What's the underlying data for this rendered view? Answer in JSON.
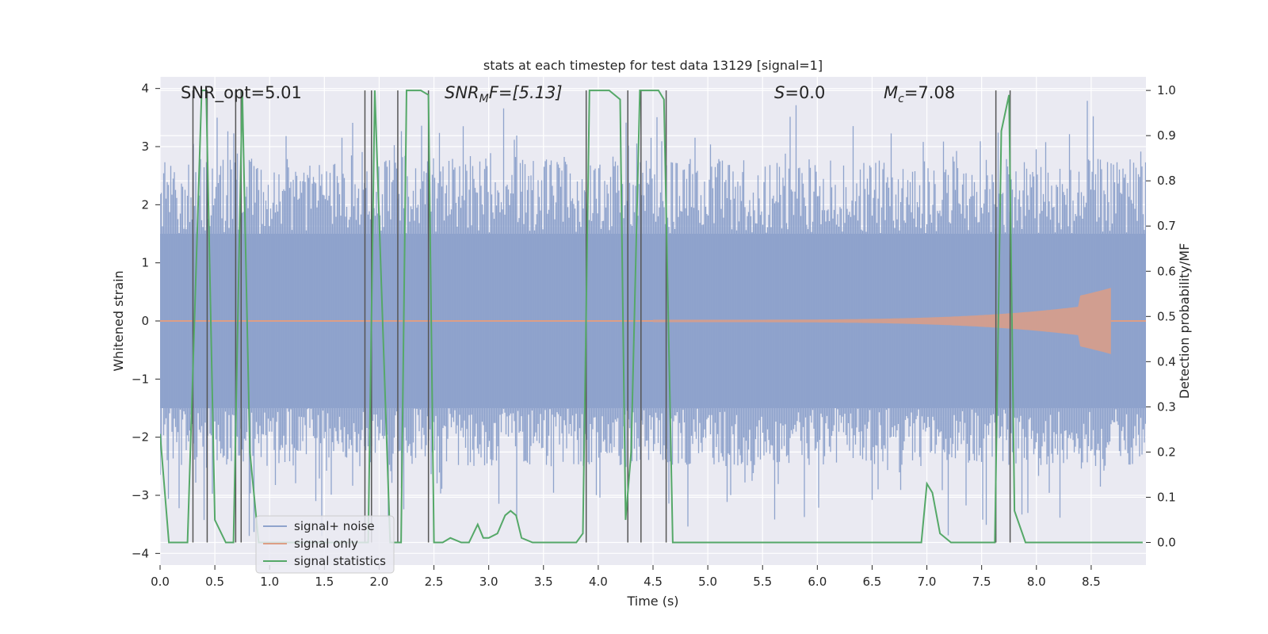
{
  "chart_data": {
    "type": "line",
    "title": "stats at each timestep for test data 13129 [signal=1]",
    "xlabel": "Time (s)",
    "ylabel_left": "Whitened strain",
    "ylabel_right": "Detection probability/MF",
    "xlim": [
      0.0,
      9.0
    ],
    "ylim_left": [
      -4.2,
      4.2
    ],
    "ylim_right": [
      -0.05,
      1.03
    ],
    "xticks": [
      "0.0",
      "0.5",
      "1.0",
      "1.5",
      "2.0",
      "2.5",
      "3.0",
      "3.5",
      "4.0",
      "4.5",
      "5.0",
      "5.5",
      "6.0",
      "6.5",
      "7.0",
      "7.5",
      "8.0",
      "8.5"
    ],
    "yticks_left": [
      "4",
      "3",
      "2",
      "1",
      "0",
      "−1",
      "−2",
      "−3",
      "−4"
    ],
    "yticks_right": [
      "1.0",
      "0.9",
      "0.8",
      "0.7",
      "0.6",
      "0.5",
      "0.4",
      "0.3",
      "0.2",
      "0.1",
      "0.0"
    ],
    "grid": true,
    "legend_position": "lower-left",
    "annotations": {
      "snr_opt": "SNR_opt=5.01",
      "snr_mf_base": "SNR",
      "snr_mf_sub": "M",
      "snr_mf_rest": "F=[5.13]",
      "s_var": "S",
      "s_rest": "=0.0",
      "mc_var": "M",
      "mc_sub": "c",
      "mc_rest": "=7.08"
    },
    "series": [
      {
        "name": "signal+ noise",
        "color": "#8fa3cc",
        "axis": "left",
        "description_values": {
          "envelope_typical": 1.5,
          "peak_max": 4.1,
          "peak_min": -3.7
        }
      },
      {
        "name": "signal only",
        "color": "#dd9e85",
        "axis": "left",
        "chirp": {
          "start": 4.5,
          "end": 8.68,
          "max_amplitude": 0.55
        }
      },
      {
        "name": "signal statistics",
        "color": "#55a868",
        "axis": "right",
        "x": [
          0.0,
          0.08,
          0.25,
          0.38,
          0.42,
          0.5,
          0.6,
          0.67,
          0.75,
          0.82,
          0.9,
          1.9,
          1.96,
          2.1,
          2.2,
          2.25,
          2.38,
          2.45,
          2.5,
          2.58,
          2.65,
          2.75,
          2.82,
          2.9,
          2.95,
          3.0,
          3.08,
          3.15,
          3.2,
          3.25,
          3.3,
          3.4,
          3.5,
          3.6,
          3.7,
          3.8,
          3.86,
          3.92,
          4.0,
          4.1,
          4.2,
          4.25,
          4.3,
          4.38,
          4.45,
          4.55,
          4.6,
          4.68,
          4.78,
          4.9,
          5.0,
          5.5,
          6.0,
          6.5,
          6.95,
          7.0,
          7.05,
          7.12,
          7.22,
          7.3,
          7.62,
          7.68,
          7.75,
          7.8,
          7.9,
          8.0,
          8.5,
          8.97
        ],
        "y": [
          0.24,
          0.0,
          0.0,
          1.0,
          1.0,
          0.05,
          0.0,
          0.0,
          1.0,
          0.2,
          0.0,
          0.0,
          1.0,
          0.0,
          0.0,
          1.0,
          1.0,
          0.99,
          0.0,
          0.0,
          0.01,
          0.0,
          0.0,
          0.04,
          0.01,
          0.01,
          0.02,
          0.06,
          0.07,
          0.06,
          0.01,
          0.0,
          0.0,
          0.0,
          0.0,
          0.0,
          0.02,
          1.0,
          1.0,
          1.0,
          0.98,
          0.05,
          0.2,
          1.0,
          1.0,
          1.0,
          0.98,
          0.0,
          0.0,
          0.0,
          0.0,
          0.0,
          0.0,
          0.0,
          0.0,
          0.13,
          0.11,
          0.02,
          0.0,
          0.0,
          0.0,
          0.91,
          0.99,
          0.07,
          0.0,
          0.0,
          0.0,
          0.0
        ]
      }
    ],
    "vertical_markers": [
      0.3,
      0.43,
      0.69,
      0.74,
      1.87,
      1.93,
      2.17,
      2.45,
      3.89,
      4.27,
      4.39,
      4.62,
      7.63,
      7.76
    ]
  }
}
